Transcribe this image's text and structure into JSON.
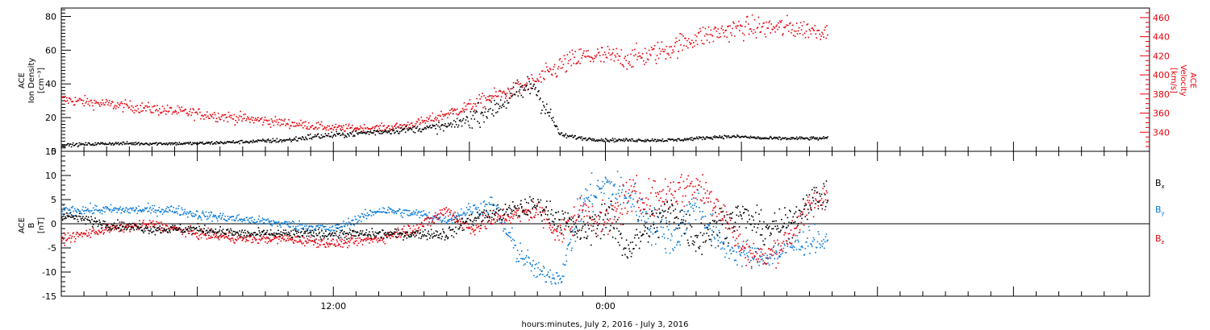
{
  "chart_data": [
    {
      "type": "scatter",
      "panel": "top",
      "ylabel_left": [
        "ACE",
        "Ion Density",
        "[cm⁻³]"
      ],
      "ylabel_right": [
        "ACE",
        "Velocity",
        "[km/s]"
      ],
      "ylim_left": [
        0,
        85
      ],
      "ylim_right": [
        320,
        470
      ],
      "yticks_left": [
        0,
        20,
        40,
        60,
        80
      ],
      "yticks_right": [
        340,
        360,
        380,
        400,
        420,
        440,
        460
      ],
      "x_unit": "hours since 2016-07-02 00:00",
      "xlim": [
        0,
        48
      ],
      "data_end_hour": 33.8,
      "series": [
        {
          "name": "Ion Density",
          "axis": "left",
          "color": "#000000",
          "x": [
            0,
            2,
            4,
            6,
            8,
            10,
            11,
            12,
            13,
            14,
            15,
            16,
            17,
            18,
            19,
            20,
            20.8,
            21.2,
            22,
            23,
            24,
            25,
            26,
            27,
            28,
            29,
            30,
            31,
            32,
            33,
            33.8
          ],
          "y": [
            4,
            5,
            5,
            5,
            6,
            7,
            9,
            10,
            11,
            12,
            13,
            14,
            15,
            20,
            26,
            34,
            40,
            30,
            10,
            8,
            7,
            7,
            7,
            7,
            8,
            9,
            9,
            8,
            8,
            8,
            8
          ],
          "spread": [
            1,
            1,
            1,
            1,
            1,
            1.5,
            2,
            2,
            2,
            2,
            2,
            2,
            4,
            6,
            7,
            8,
            8,
            8,
            1.5,
            1,
            1,
            1,
            1,
            1,
            1,
            1,
            1,
            1,
            1,
            1,
            1
          ]
        },
        {
          "name": "Velocity",
          "axis": "right",
          "color": "#e8000b",
          "x": [
            0,
            2,
            4,
            6,
            8,
            10,
            12,
            14,
            15,
            16,
            17,
            18,
            19,
            20,
            21,
            22,
            23,
            24,
            25,
            26,
            27,
            28,
            29,
            30,
            31,
            32,
            33,
            33.8
          ],
          "y": [
            375,
            370,
            365,
            360,
            355,
            350,
            345,
            345,
            347,
            352,
            360,
            368,
            378,
            385,
            395,
            410,
            420,
            420,
            418,
            422,
            430,
            440,
            445,
            450,
            450,
            450,
            448,
            445
          ],
          "spread": [
            6,
            6,
            6,
            6,
            6,
            5,
            4,
            4,
            4,
            5,
            6,
            7,
            8,
            8,
            10,
            12,
            12,
            12,
            12,
            12,
            12,
            12,
            12,
            12,
            12,
            12,
            10,
            8
          ]
        }
      ]
    },
    {
      "type": "scatter",
      "panel": "bottom",
      "ylabel": [
        "ACE",
        "B",
        "[nT]"
      ],
      "ylim": [
        -15,
        15
      ],
      "yticks": [
        -15,
        -10,
        -5,
        0,
        5,
        10,
        15
      ],
      "zero_line": true,
      "x_unit": "hours since 2016-07-02 00:00",
      "xlim": [
        0,
        48
      ],
      "xticks": [
        {
          "hour": 12,
          "label": "12:00"
        },
        {
          "hour": 24,
          "label": "0:00"
        }
      ],
      "xlabel": "hours:minutes, July  2, 2016 - July  3, 2016",
      "series": [
        {
          "name": "Bx",
          "color": "#000000",
          "x": [
            0,
            1,
            2,
            4,
            6,
            8,
            10,
            12,
            14,
            16,
            17,
            18,
            19,
            20,
            21,
            22,
            23,
            24,
            25,
            26,
            27,
            28,
            29,
            30,
            31,
            32,
            33,
            33.8
          ],
          "y": [
            2,
            1,
            0,
            -1,
            -1,
            -2,
            -2,
            -2,
            -2,
            -2,
            -2,
            1,
            2,
            3,
            4,
            1,
            -2,
            2,
            -5,
            0,
            3,
            -3,
            0,
            2,
            -1,
            0,
            5,
            6
          ],
          "spread": [
            1,
            1,
            1,
            1,
            1,
            1,
            1,
            1,
            1,
            1,
            1.5,
            1.5,
            2,
            2,
            2,
            3,
            3,
            4,
            4,
            4,
            4,
            4,
            4,
            3,
            3,
            3,
            3,
            3
          ]
        },
        {
          "name": "By",
          "color": "#0c7bd6",
          "x": [
            0,
            1,
            2,
            3,
            4,
            5,
            6,
            8,
            10,
            12,
            14,
            16,
            17,
            18,
            19,
            20,
            21,
            22,
            23,
            24,
            25,
            26,
            27,
            28,
            29,
            30,
            31,
            32,
            33,
            33.8
          ],
          "y": [
            3,
            3,
            3,
            3,
            3,
            3,
            2,
            1,
            0,
            -1,
            3,
            2,
            1,
            3,
            4,
            -5,
            -10,
            -11,
            5,
            8,
            6,
            0,
            -3,
            5,
            -4,
            -6,
            -7,
            -5,
            -3,
            -4
          ],
          "spread": [
            1,
            1,
            1,
            1,
            1,
            1,
            1,
            1,
            1,
            1,
            1,
            1,
            1,
            1.5,
            2,
            3,
            2,
            2,
            4,
            4,
            4,
            4,
            4,
            4,
            3,
            3,
            2,
            3,
            3,
            2
          ]
        },
        {
          "name": "Bz",
          "color": "#e8000b",
          "x": [
            0,
            1,
            2,
            4,
            6,
            8,
            10,
            12,
            14,
            16,
            17,
            18,
            19,
            20,
            21,
            22,
            23,
            24,
            25,
            26,
            27,
            28,
            29,
            30,
            31,
            32,
            33,
            33.8
          ],
          "y": [
            -3,
            -2,
            -1,
            0,
            -2,
            -3,
            -3,
            -4,
            -3,
            0,
            3,
            -1,
            1,
            2,
            3,
            -2,
            3,
            0,
            6,
            5,
            7,
            8,
            4,
            -5,
            -7,
            -3,
            4,
            6
          ],
          "spread": [
            1,
            1,
            1,
            1,
            1,
            1,
            1,
            1,
            1,
            1.5,
            1.5,
            1.5,
            2,
            2,
            3,
            3,
            3,
            4,
            4,
            4,
            4,
            4,
            4,
            3,
            3,
            3,
            3,
            3
          ]
        }
      ],
      "legend": [
        {
          "label": "B",
          "sub": "x",
          "color": "#000000"
        },
        {
          "label": "B",
          "sub": "y",
          "color": "#0c7bd6"
        },
        {
          "label": "B",
          "sub": "z",
          "color": "#e8000b"
        }
      ]
    }
  ]
}
